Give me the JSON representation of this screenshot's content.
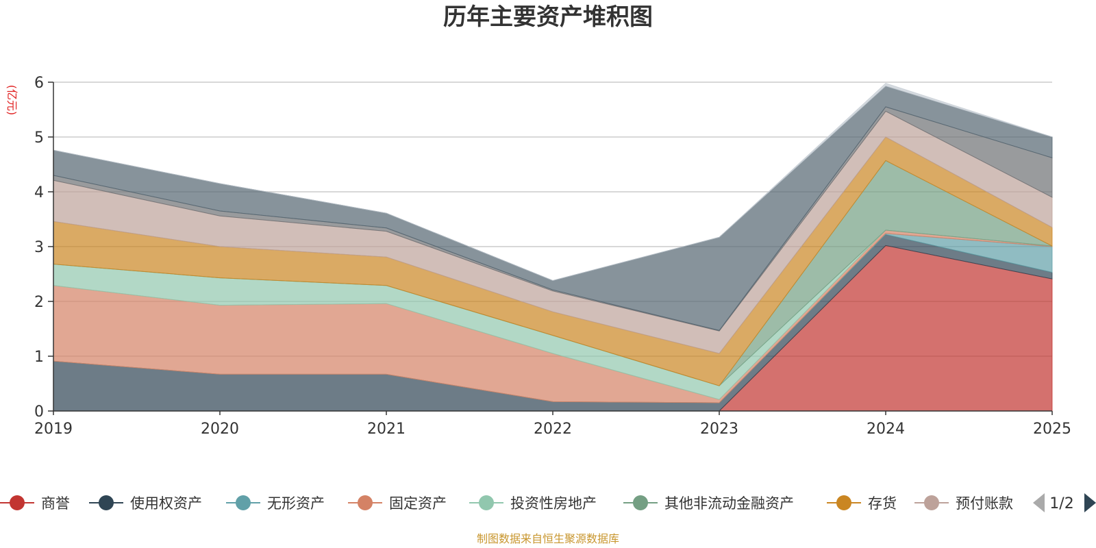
{
  "chart_data": {
    "type": "area",
    "stacked": true,
    "title": "历年主要资产堆积图",
    "ylabel": "(亿元)",
    "xlabel": "",
    "x": [
      "2019",
      "2020",
      "2021",
      "2022",
      "2023",
      "2024",
      "2025"
    ],
    "ylim": [
      0,
      6
    ],
    "yticks": [
      "0",
      "1",
      "2",
      "3",
      "4",
      "5",
      "6"
    ],
    "grid": true,
    "legend_position": "bottom",
    "legend_page": "1/2",
    "series": [
      {
        "name": "商誉",
        "color": "#c23531",
        "values": [
          0,
          0,
          0,
          0,
          0,
          3.02,
          2.41
        ]
      },
      {
        "name": "使用权资产",
        "color": "#2f4554",
        "values": [
          0.91,
          0.67,
          0.67,
          0.17,
          0.15,
          0.2,
          0.12
        ]
      },
      {
        "name": "无形资产",
        "color": "#61a0a8",
        "values": [
          0,
          0,
          0,
          0,
          0,
          0.02,
          0.47
        ]
      },
      {
        "name": "固定资产",
        "color": "#d48265",
        "values": [
          1.38,
          1.26,
          1.29,
          0.88,
          0.06,
          0.06,
          0.01
        ]
      },
      {
        "name": "投资性房地产",
        "color": "#91c7ae",
        "values": [
          0.39,
          0.5,
          0.33,
          0.33,
          0.25,
          0,
          0
        ]
      },
      {
        "name": "其他非流动金融资产",
        "color": "#749f83",
        "values": [
          0,
          0,
          0,
          0,
          0,
          1.27,
          0
        ]
      },
      {
        "name": "存货",
        "color": "#ca8622",
        "values": [
          0.78,
          0.57,
          0.52,
          0.43,
          0.59,
          0.43,
          0.34
        ]
      },
      {
        "name": "预付账款",
        "color": "#bda29a",
        "values": [
          0.75,
          0.56,
          0.47,
          0.38,
          0.41,
          0.47,
          0.55
        ]
      },
      {
        "name": "",
        "color": "#6e7074",
        "values": [
          0.09,
          0.09,
          0.06,
          0.02,
          0.01,
          0.08,
          0.72
        ]
      },
      {
        "name": "",
        "color": "#546570",
        "values": [
          0.46,
          0.5,
          0.27,
          0.17,
          1.7,
          0.38,
          0.38
        ]
      },
      {
        "name": "",
        "color": "#c4ccd3",
        "values": [
          0,
          0,
          0,
          0,
          0,
          0.05,
          0
        ]
      }
    ]
  },
  "footer": {
    "source": "制图数据来自恒生聚源数据库"
  }
}
